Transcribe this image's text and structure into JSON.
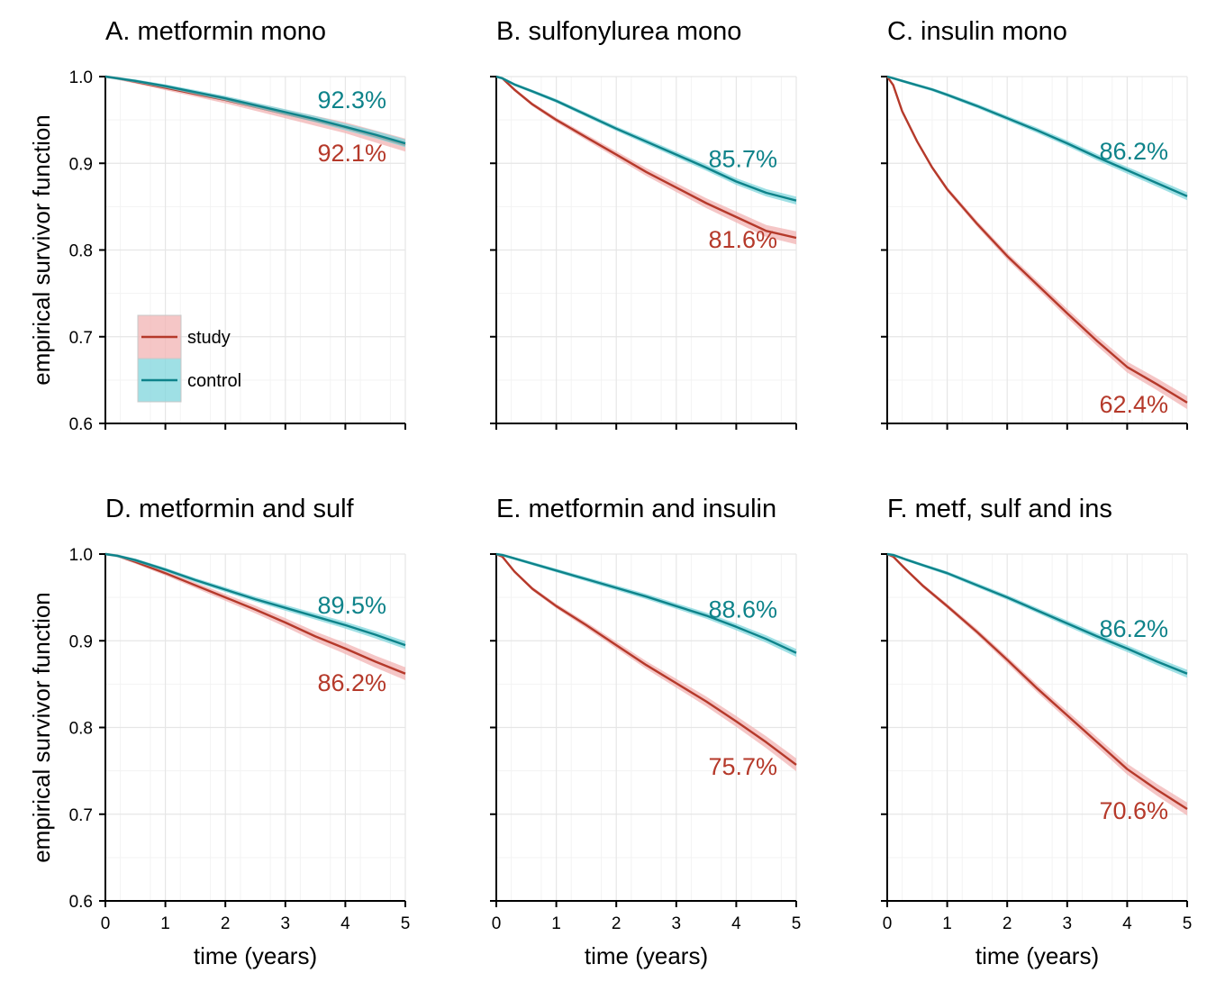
{
  "chart_data": {
    "type": "line",
    "shared_ylabel": "empirical survivor function",
    "shared_xlabel": "time (years)",
    "xlim": [
      0,
      5
    ],
    "ylim": [
      0.6,
      1.0
    ],
    "x_ticks": [
      "0",
      "1",
      "2",
      "3",
      "4",
      "5"
    ],
    "y_ticks": [
      "0.6",
      "0.7",
      "0.8",
      "0.9",
      "1.0"
    ],
    "grid": "on",
    "colors": {
      "study": "#b5392a",
      "control": "#0e838a",
      "study_band": "#f2b3b3",
      "control_band": "#7fd6dc"
    },
    "legend": {
      "placement": "inside-bottom-left of panel A",
      "entries": [
        {
          "key": "study",
          "label": "study"
        },
        {
          "key": "control",
          "label": "control"
        }
      ]
    },
    "panels": [
      {
        "title": "A. metformin mono",
        "series": [
          {
            "key": "study",
            "name": "study",
            "end_label": "92.1%",
            "x": [
              0,
              0.2,
              0.5,
              1,
              1.5,
              2,
              2.5,
              3,
              3.5,
              4,
              4.5,
              5
            ],
            "y": [
              1.0,
              0.998,
              0.994,
              0.987,
              0.98,
              0.973,
              0.965,
              0.957,
              0.949,
              0.941,
              0.931,
              0.921
            ]
          },
          {
            "key": "control",
            "name": "control",
            "end_label": "92.3%",
            "x": [
              0,
              0.2,
              0.5,
              1,
              1.5,
              2,
              2.5,
              3,
              3.5,
              4,
              4.5,
              5
            ],
            "y": [
              1.0,
              0.998,
              0.995,
              0.989,
              0.982,
              0.975,
              0.967,
              0.959,
              0.951,
              0.942,
              0.933,
              0.923
            ]
          }
        ]
      },
      {
        "title": "B. sulfonylurea mono",
        "series": [
          {
            "key": "study",
            "name": "study",
            "end_label": "81.6%",
            "x": [
              0,
              0.1,
              0.3,
              0.6,
              1,
              1.5,
              2,
              2.5,
              3,
              3.5,
              4,
              4.5,
              5
            ],
            "y": [
              1.0,
              0.998,
              0.985,
              0.968,
              0.95,
              0.93,
              0.91,
              0.89,
              0.872,
              0.854,
              0.838,
              0.822,
              0.814
            ]
          },
          {
            "key": "control",
            "name": "control",
            "end_label": "85.7%",
            "x": [
              0,
              0.1,
              0.3,
              0.6,
              1,
              1.5,
              2,
              2.5,
              3,
              3.5,
              4,
              4.5,
              5
            ],
            "y": [
              1.0,
              0.998,
              0.991,
              0.983,
              0.972,
              0.956,
              0.94,
              0.925,
              0.91,
              0.895,
              0.879,
              0.866,
              0.857
            ]
          }
        ]
      },
      {
        "title": "C. insulin mono",
        "series": [
          {
            "key": "study",
            "name": "study",
            "end_label": "62.4%",
            "x": [
              0,
              0.1,
              0.25,
              0.5,
              0.75,
              1,
              1.5,
              2,
              2.5,
              3,
              3.5,
              4,
              4.5,
              5
            ],
            "y": [
              1.0,
              0.99,
              0.96,
              0.925,
              0.895,
              0.87,
              0.83,
              0.793,
              0.76,
              0.727,
              0.695,
              0.665,
              0.645,
              0.624
            ]
          },
          {
            "key": "control",
            "name": "control",
            "end_label": "86.2%",
            "x": [
              0,
              0.1,
              0.25,
              0.5,
              0.75,
              1,
              1.5,
              2,
              2.5,
              3,
              3.5,
              4,
              4.5,
              5
            ],
            "y": [
              1.0,
              0.998,
              0.995,
              0.99,
              0.985,
              0.979,
              0.966,
              0.952,
              0.938,
              0.923,
              0.907,
              0.892,
              0.877,
              0.862
            ]
          }
        ]
      },
      {
        "title": "D. metformin and sulf",
        "series": [
          {
            "key": "study",
            "name": "study",
            "end_label": "86.2%",
            "x": [
              0,
              0.2,
              0.5,
              1,
              1.5,
              2,
              2.5,
              3,
              3.5,
              4,
              4.5,
              5
            ],
            "y": [
              1.0,
              0.998,
              0.991,
              0.978,
              0.964,
              0.95,
              0.936,
              0.921,
              0.905,
              0.891,
              0.876,
              0.862
            ]
          },
          {
            "key": "control",
            "name": "control",
            "end_label": "89.5%",
            "x": [
              0,
              0.2,
              0.5,
              1,
              1.5,
              2,
              2.5,
              3,
              3.5,
              4,
              4.5,
              5
            ],
            "y": [
              1.0,
              0.998,
              0.993,
              0.982,
              0.97,
              0.959,
              0.948,
              0.938,
              0.928,
              0.918,
              0.907,
              0.895
            ]
          }
        ]
      },
      {
        "title": "E. metformin and insulin",
        "series": [
          {
            "key": "study",
            "name": "study",
            "end_label": "75.7%",
            "x": [
              0,
              0.1,
              0.3,
              0.6,
              1,
              1.5,
              2,
              2.5,
              3,
              3.5,
              4,
              4.5,
              5
            ],
            "y": [
              1.0,
              0.997,
              0.98,
              0.96,
              0.94,
              0.918,
              0.895,
              0.872,
              0.851,
              0.83,
              0.807,
              0.783,
              0.757
            ]
          },
          {
            "key": "control",
            "name": "control",
            "end_label": "88.6%",
            "x": [
              0,
              0.1,
              0.3,
              0.6,
              1,
              1.5,
              2,
              2.5,
              3,
              3.5,
              4,
              4.5,
              5
            ],
            "y": [
              1.0,
              0.999,
              0.995,
              0.989,
              0.981,
              0.971,
              0.961,
              0.951,
              0.94,
              0.929,
              0.916,
              0.902,
              0.886
            ]
          }
        ]
      },
      {
        "title": "F. metf, sulf and ins",
        "series": [
          {
            "key": "study",
            "name": "study",
            "end_label": "70.6%",
            "x": [
              0,
              0.1,
              0.3,
              0.6,
              1,
              1.5,
              2,
              2.5,
              3,
              3.5,
              4,
              4.5,
              5
            ],
            "y": [
              1.0,
              0.997,
              0.983,
              0.963,
              0.94,
              0.91,
              0.878,
              0.845,
              0.814,
              0.783,
              0.752,
              0.728,
              0.706
            ]
          },
          {
            "key": "control",
            "name": "control",
            "end_label": "86.2%",
            "x": [
              0,
              0.1,
              0.3,
              0.6,
              1,
              1.5,
              2,
              2.5,
              3,
              3.5,
              4,
              4.5,
              5
            ],
            "y": [
              1.0,
              0.999,
              0.994,
              0.987,
              0.978,
              0.964,
              0.95,
              0.935,
              0.92,
              0.905,
              0.891,
              0.876,
              0.862
            ]
          }
        ]
      }
    ]
  }
}
